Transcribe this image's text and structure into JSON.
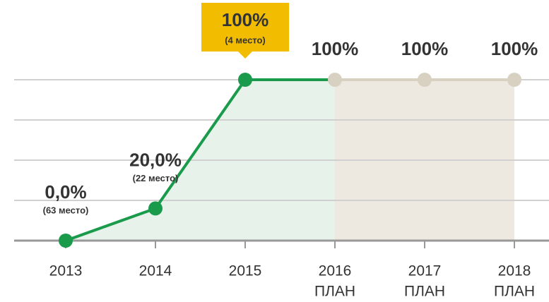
{
  "chart_data": {
    "type": "line",
    "categories": [
      "2013",
      "2014",
      "2015",
      "2016",
      "2017",
      "2018"
    ],
    "category_sublabels": [
      null,
      null,
      null,
      "ПЛАН",
      "ПЛАН",
      "ПЛАН"
    ],
    "values": [
      0,
      20,
      100,
      100,
      100,
      100
    ],
    "value_labels": [
      "0,0%",
      "20,0%",
      "100%",
      "100%",
      "100%",
      "100%"
    ],
    "rank_labels": [
      "(63 место)",
      "(22 место)",
      "(4 место)",
      null,
      null,
      null
    ],
    "colors": [
      "#1a9a4b",
      "#1a9a4b",
      "#1a9a4b",
      "#d8d0c0",
      "#d8d0c0",
      "#d8d0c0"
    ],
    "area_colors": [
      "#e6f2ea",
      "#e6f2ea",
      "#e6f2ea",
      "#ede9e0",
      "#ede9e0",
      "#ede9e0"
    ],
    "highlight_index": 2,
    "highlight_color": "#f2bd00",
    "ylim": [
      0,
      100
    ],
    "yticks": [
      0,
      25,
      50,
      75,
      100
    ],
    "grid": true
  }
}
